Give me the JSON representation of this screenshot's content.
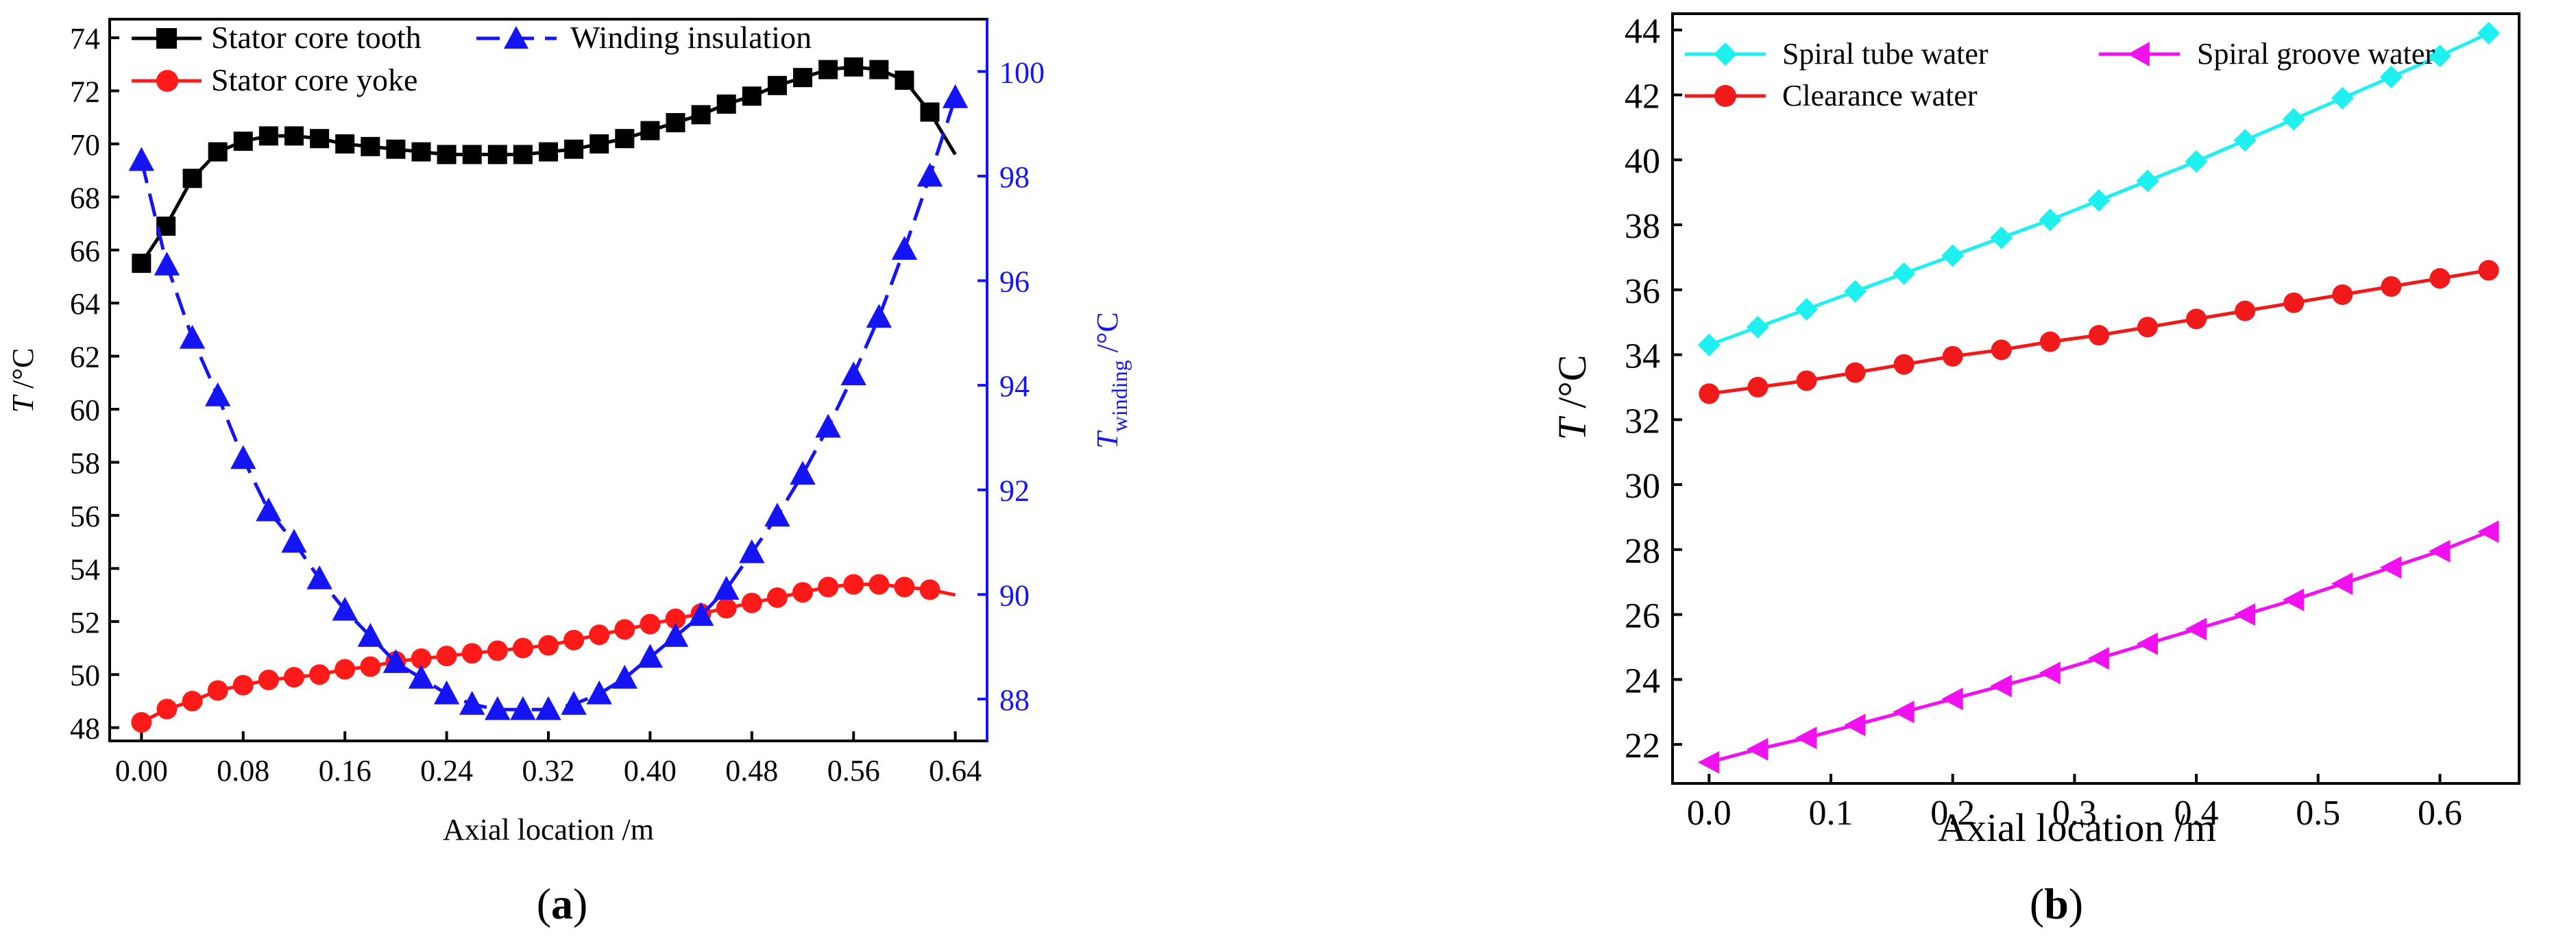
{
  "chart_data": [
    {
      "type": "line",
      "panel_label": "a",
      "xlabel": "Axial location /m",
      "ylabel_main": "T",
      "ylabel_unit": " /°C",
      "ylabel_right_main": "T",
      "ylabel_right_sub": "winding",
      "ylabel_right_unit": " /°C",
      "xlim": [
        -0.025,
        0.665
      ],
      "ylim": [
        47.5,
        74.7
      ],
      "y2lim": [
        87.2,
        101
      ],
      "xticks": [
        "0.00",
        "0.08",
        "0.16",
        "0.24",
        "0.32",
        "0.40",
        "0.48",
        "0.56",
        "0.64"
      ],
      "yticks": [
        "48",
        "50",
        "52",
        "54",
        "56",
        "58",
        "60",
        "62",
        "64",
        "66",
        "68",
        "70",
        "72",
        "74"
      ],
      "y2ticks": [
        "88",
        "90",
        "92",
        "94",
        "96",
        "98",
        "100"
      ],
      "series": [
        {
          "name": "Stator core tooth",
          "axis": "left",
          "color": "#000000",
          "marker": "square",
          "dash": "solid",
          "x": [
            0.0,
            0.0193,
            0.04,
            0.06,
            0.08,
            0.1,
            0.12,
            0.14,
            0.16,
            0.18,
            0.2,
            0.22,
            0.24,
            0.26,
            0.28,
            0.3,
            0.32,
            0.34,
            0.36,
            0.38,
            0.4,
            0.42,
            0.44,
            0.46,
            0.48,
            0.5,
            0.52,
            0.54,
            0.56,
            0.58,
            0.6,
            0.62
          ],
          "y": [
            65.5,
            66.9,
            68.7,
            69.7,
            70.1,
            70.3,
            70.3,
            70.2,
            70.0,
            69.9,
            69.8,
            69.7,
            69.6,
            69.6,
            69.6,
            69.6,
            69.7,
            69.8,
            70.0,
            70.2,
            70.5,
            70.8,
            71.1,
            71.5,
            71.8,
            72.2,
            72.5,
            72.8,
            72.9,
            72.8,
            72.4,
            71.2
          ],
          "line_end": [
            0.64,
            69.6
          ]
        },
        {
          "name": "Stator core yoke",
          "axis": "left",
          "color": "#ff1a1a",
          "marker": "circle",
          "dash": "solid",
          "x": [
            0.0,
            0.02,
            0.04,
            0.06,
            0.08,
            0.1,
            0.12,
            0.14,
            0.16,
            0.18,
            0.2,
            0.22,
            0.24,
            0.26,
            0.28,
            0.3,
            0.32,
            0.34,
            0.36,
            0.38,
            0.4,
            0.42,
            0.44,
            0.46,
            0.48,
            0.5,
            0.52,
            0.54,
            0.56,
            0.58,
            0.6,
            0.62
          ],
          "y": [
            48.2,
            48.7,
            49.0,
            49.4,
            49.6,
            49.8,
            49.9,
            50.0,
            50.2,
            50.3,
            50.5,
            50.6,
            50.7,
            50.8,
            50.9,
            51.0,
            51.1,
            51.3,
            51.5,
            51.7,
            51.9,
            52.1,
            52.3,
            52.5,
            52.7,
            52.9,
            53.1,
            53.3,
            53.4,
            53.4,
            53.3,
            53.2
          ],
          "line_end": [
            0.64,
            53.0
          ]
        },
        {
          "name": "Winding insulation",
          "axis": "right",
          "color": "#1414f5",
          "marker": "triangle-up",
          "dash": "dashed",
          "x": [
            0.0,
            0.02,
            0.04,
            0.06,
            0.08,
            0.1,
            0.12,
            0.14,
            0.16,
            0.18,
            0.2,
            0.22,
            0.24,
            0.26,
            0.28,
            0.3,
            0.32,
            0.34,
            0.36,
            0.38,
            0.4,
            0.42,
            0.44,
            0.46,
            0.48,
            0.5,
            0.52,
            0.54,
            0.56,
            0.58,
            0.6,
            0.62,
            0.64
          ],
          "y": [
            98.3,
            96.3,
            94.9,
            93.8,
            92.6,
            91.6,
            91.0,
            90.3,
            89.7,
            89.2,
            88.7,
            88.4,
            88.1,
            87.9,
            87.8,
            87.8,
            87.8,
            87.9,
            88.1,
            88.4,
            88.8,
            89.2,
            89.6,
            90.1,
            90.8,
            91.5,
            92.3,
            93.2,
            94.2,
            95.3,
            96.6,
            98.0,
            99.5
          ]
        }
      ],
      "legend": {
        "placement": "top-left",
        "entries": [
          "Stator core tooth",
          "Winding insulation",
          "Stator core yoke"
        ]
      }
    },
    {
      "type": "line",
      "panel_label": "b",
      "xlabel": "Axial location /m",
      "ylabel_main": "T",
      "ylabel_unit": " /°C",
      "xlim": [
        -0.03,
        0.665
      ],
      "ylim": [
        20.8,
        44.5
      ],
      "xticks": [
        "0.0",
        "0.1",
        "0.2",
        "0.3",
        "0.4",
        "0.5",
        "0.6"
      ],
      "yticks": [
        "22",
        "24",
        "26",
        "28",
        "30",
        "32",
        "34",
        "36",
        "38",
        "40",
        "42",
        "44"
      ],
      "series": [
        {
          "name": "Spiral tube water",
          "color": "#1ef0f0",
          "marker": "diamond",
          "x": [
            0.0,
            0.04,
            0.08,
            0.12,
            0.16,
            0.2,
            0.24,
            0.28,
            0.32,
            0.36,
            0.4,
            0.44,
            0.48,
            0.52,
            0.56,
            0.6,
            0.64
          ],
          "y": [
            34.3,
            34.85,
            35.4,
            35.95,
            36.5,
            37.05,
            37.6,
            38.15,
            38.75,
            39.35,
            39.95,
            40.6,
            41.25,
            41.9,
            42.55,
            43.2,
            43.9
          ]
        },
        {
          "name": "Spiral groove water",
          "color": "#f010f0",
          "marker": "triangle-left",
          "x": [
            0.0,
            0.04,
            0.08,
            0.12,
            0.16,
            0.2,
            0.24,
            0.28,
            0.32,
            0.36,
            0.4,
            0.44,
            0.48,
            0.52,
            0.56,
            0.6,
            0.64
          ],
          "y": [
            21.45,
            21.85,
            22.2,
            22.6,
            23.0,
            23.4,
            23.8,
            24.2,
            24.65,
            25.1,
            25.55,
            26.0,
            26.45,
            26.95,
            27.45,
            27.95,
            28.55
          ]
        },
        {
          "name": "Clearance water",
          "color": "#f01a1a",
          "marker": "circle",
          "x": [
            0.0,
            0.04,
            0.08,
            0.12,
            0.16,
            0.2,
            0.24,
            0.28,
            0.32,
            0.36,
            0.4,
            0.44,
            0.48,
            0.52,
            0.56,
            0.6,
            0.64
          ],
          "y": [
            32.8,
            33.0,
            33.2,
            33.45,
            33.7,
            33.95,
            34.15,
            34.4,
            34.6,
            34.85,
            35.1,
            35.35,
            35.6,
            35.85,
            36.1,
            36.35,
            36.6
          ]
        }
      ],
      "legend": {
        "placement": "top-left",
        "entries": [
          "Spiral tube water",
          "Spiral groove water",
          "Clearance water"
        ]
      }
    }
  ]
}
